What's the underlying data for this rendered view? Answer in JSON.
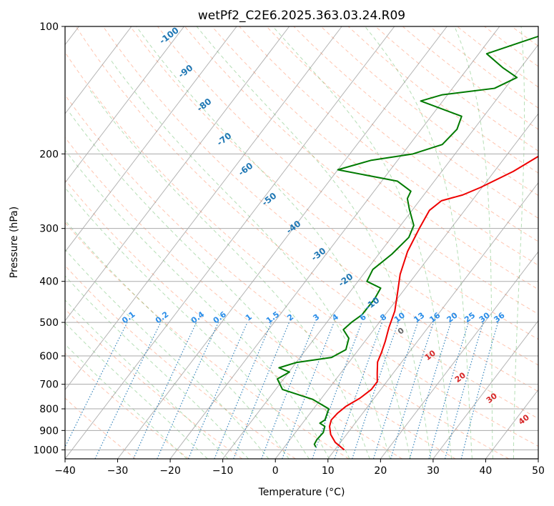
{
  "chart_data": {
    "type": "line",
    "title": "wetPf2_C2E6.2025.363.03.24.R09",
    "xlabel": "Temperature (°C)",
    "ylabel": "Pressure (hPa)",
    "xlim": [
      -40,
      50
    ],
    "ylim": [
      1050,
      100
    ],
    "y_scale": "log",
    "x_ticks": [
      -40,
      -30,
      -20,
      -10,
      0,
      10,
      20,
      30,
      40,
      50
    ],
    "y_ticks": [
      100,
      200,
      300,
      400,
      500,
      600,
      700,
      800,
      900,
      1000
    ],
    "grid": true,
    "colors": {
      "temperature": "#ee0000",
      "dewpoint": "#007a00",
      "dry_adiabat": "#ff7f50",
      "moist_adiabat": "#2ca02c",
      "mixing_ratio": "#1f77b4",
      "isotherm": "#555555",
      "grid": "#aaaaaa"
    },
    "series": [
      {
        "id": "temperature",
        "style": "solid",
        "points": [
          [
            11.8,
            1000
          ],
          [
            9.0,
            960
          ],
          [
            7.0,
            920
          ],
          [
            5.6,
            880
          ],
          [
            5.0,
            850
          ],
          [
            5.2,
            820
          ],
          [
            5.8,
            790
          ],
          [
            7.3,
            755
          ],
          [
            8.2,
            720
          ],
          [
            8.2,
            690
          ],
          [
            7.0,
            660
          ],
          [
            5.4,
            620
          ],
          [
            4.8,
            590
          ],
          [
            3.9,
            555
          ],
          [
            2.6,
            515
          ],
          [
            1.3,
            470
          ],
          [
            -0.6,
            430
          ],
          [
            -3.0,
            385
          ],
          [
            -4.9,
            340
          ],
          [
            -6.0,
            300
          ],
          [
            -6.7,
            272
          ],
          [
            -5.8,
            258
          ],
          [
            -2.6,
            250
          ],
          [
            -0.3,
            240
          ],
          [
            3.6,
            220
          ],
          [
            6.6,
            200
          ],
          [
            9.4,
            180
          ],
          [
            11.8,
            165
          ],
          [
            13.5,
            150
          ],
          [
            15.7,
            135
          ],
          [
            18.2,
            122
          ],
          [
            19.8,
            112
          ],
          [
            21.0,
            106
          ],
          [
            21.8,
            100
          ]
        ]
      },
      {
        "id": "dewpoint",
        "style": "solid",
        "points": [
          [
            6.0,
            985
          ],
          [
            5.3,
            970
          ],
          [
            5.1,
            945
          ],
          [
            5.3,
            910
          ],
          [
            4.7,
            880
          ],
          [
            3.3,
            865
          ],
          [
            3.8,
            850
          ],
          [
            2.9,
            800
          ],
          [
            -1.5,
            760
          ],
          [
            -8.7,
            720
          ],
          [
            -11.2,
            680
          ],
          [
            -9.9,
            655
          ],
          [
            -12.5,
            640
          ],
          [
            -10.0,
            622
          ],
          [
            -4.0,
            605
          ],
          [
            -2.4,
            580
          ],
          [
            -3.5,
            545
          ],
          [
            -5.8,
            520
          ],
          [
            -5.3,
            500
          ],
          [
            -4.4,
            480
          ],
          [
            -4.3,
            440
          ],
          [
            -4.7,
            415
          ],
          [
            -8.3,
            400
          ],
          [
            -8.9,
            375
          ],
          [
            -7.5,
            345
          ],
          [
            -6.7,
            315
          ],
          [
            -7.5,
            295
          ],
          [
            -10.7,
            270
          ],
          [
            -12.6,
            255
          ],
          [
            -13.0,
            245
          ],
          [
            -17.0,
            232
          ],
          [
            -30.0,
            218
          ],
          [
            -25.0,
            207
          ],
          [
            -18.0,
            200
          ],
          [
            -13.8,
            190
          ],
          [
            -13.2,
            175
          ],
          [
            -14.2,
            163
          ],
          [
            -24.2,
            150
          ],
          [
            -21.0,
            145
          ],
          [
            -12.0,
            140
          ],
          [
            -9.3,
            132
          ],
          [
            -13.5,
            125
          ],
          [
            -18.5,
            116
          ],
          [
            -13.0,
            108
          ],
          [
            -7.0,
            100
          ]
        ]
      }
    ],
    "labels": {
      "isotherm": [
        "-100",
        "-90",
        "-80",
        "-70",
        "-60",
        "-50",
        "-40",
        "-30",
        "-20",
        "-10"
      ],
      "mixing_ratio": [
        "0.1",
        "0.2",
        "0.4",
        "0.6",
        "1",
        "1.5",
        "2",
        "3",
        "4",
        "6",
        "8",
        "10",
        "13",
        "16",
        "20",
        "25",
        "30",
        "36"
      ],
      "dry_adiabat": [
        "0",
        "10",
        "20",
        "30",
        "40"
      ]
    }
  }
}
